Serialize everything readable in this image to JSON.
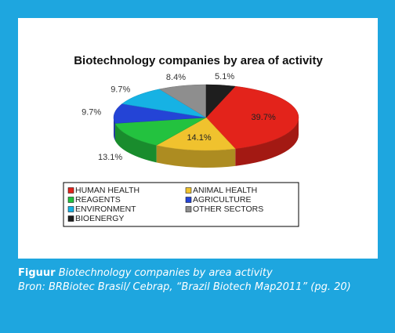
{
  "chart_data": {
    "type": "pie3d",
    "title": "Biotechnology companies by area of activity",
    "categories": [
      "HUMAN HEALTH",
      "ANIMAL HEALTH",
      "REAGENTS",
      "AGRICULTURE",
      "ENVIRONMENT",
      "OTHER SECTORS",
      "BIOENERGY"
    ],
    "values": [
      39.7,
      14.1,
      13.1,
      9.7,
      9.7,
      8.4,
      5.1
    ],
    "value_labels": [
      "39.7%",
      "14.1%",
      "13.1%",
      "9.7%",
      "9.7%",
      "8.4%",
      "5.1%"
    ],
    "colors": [
      "#e3231b",
      "#f0c22e",
      "#23c23f",
      "#2444d6",
      "#16b2e4",
      "#8e8e8e",
      "#1e1e1e"
    ],
    "legend": true
  },
  "caption": {
    "label": "Figuur",
    "text": "Biotechnology companies by area activity",
    "source": "Bron: BRBiotec Brasil/ Cebrap, “Brazil Biotech Map2011” (pg. 20)"
  }
}
